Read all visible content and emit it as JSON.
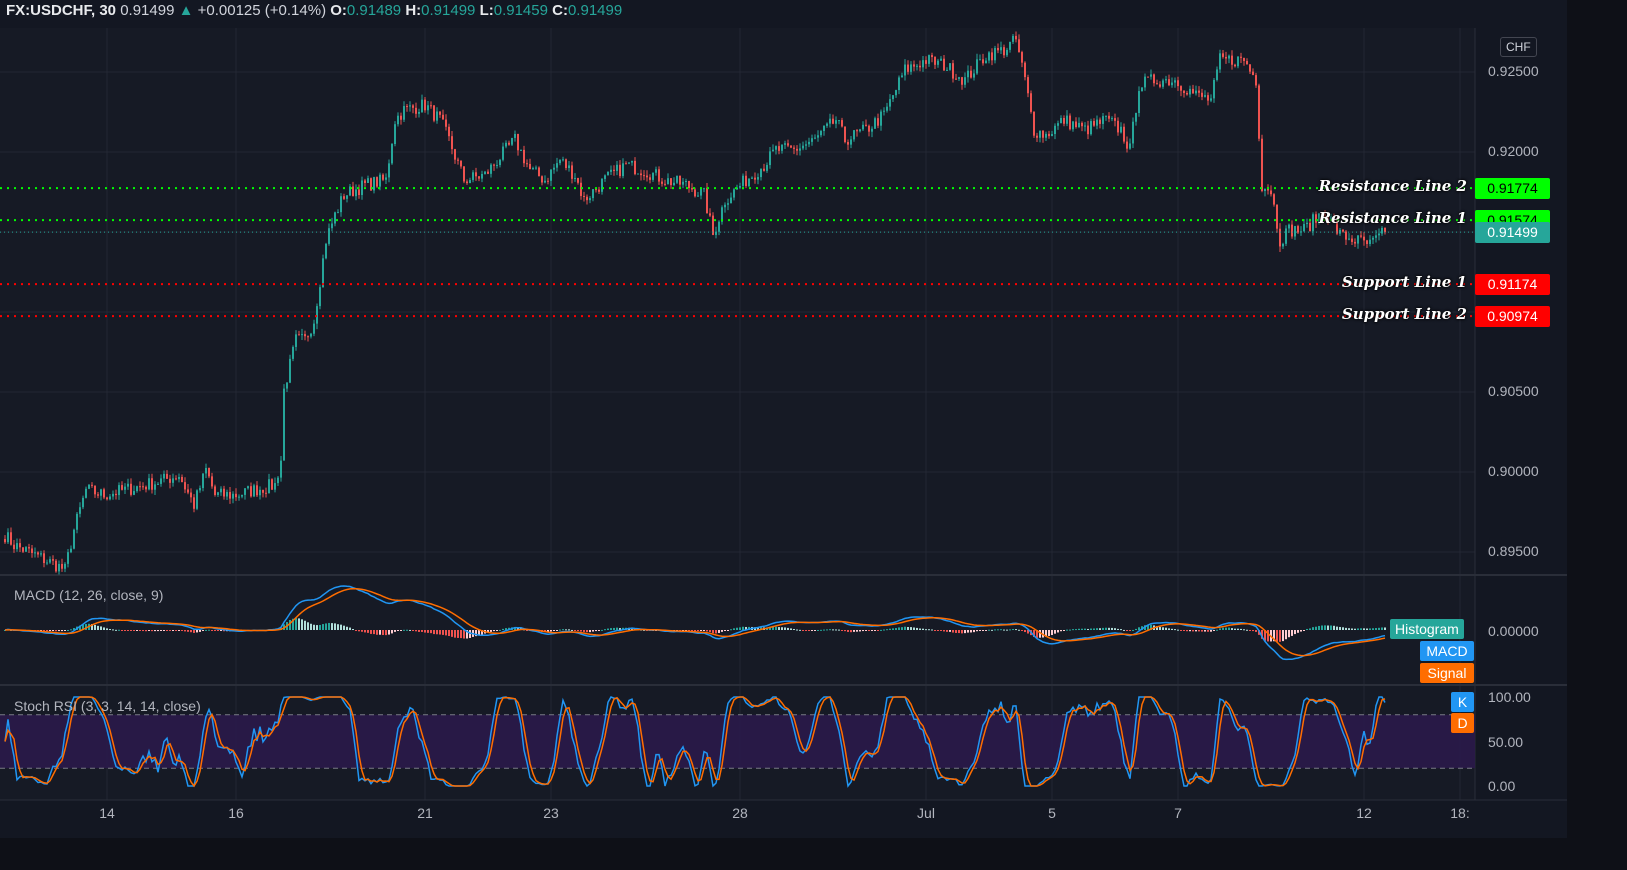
{
  "header": {
    "symbol": "FX:USDCHF, 30",
    "last": "0.91499",
    "change": "+0.00125 (+0.14%)",
    "o_label": "O:",
    "o": "0.91489",
    "h_label": "H:",
    "h": "0.91499",
    "l_label": "L:",
    "l": "0.91459",
    "c_label": "C:",
    "c": "0.91499",
    "currency": "CHF"
  },
  "levels": [
    {
      "name": "Resistance Line 2",
      "price": 0.91774,
      "label": "0.91774",
      "color": "#00ff00",
      "text_color": "#000000"
    },
    {
      "name": "Resistance Line 1",
      "price": 0.91574,
      "label": "0.91574",
      "color": "#00ff00",
      "text_color": "#000000"
    },
    {
      "name": "",
      "price": 0.91499,
      "label": "0.91499",
      "color": "#26a69a",
      "text_color": "#ffffff"
    },
    {
      "name": "Support Line 1",
      "price": 0.91174,
      "label": "0.91174",
      "color": "#ff0000",
      "text_color": "#ffffff"
    },
    {
      "name": "Support Line 2",
      "price": 0.90974,
      "label": "0.90974",
      "color": "#ff0000",
      "text_color": "#ffffff"
    }
  ],
  "indicators": {
    "macd_title": "MACD (12, 26, close, 9)",
    "macd_zero": "0.00000",
    "histogram": "Histogram",
    "macd": "MACD",
    "signal": "Signal",
    "stoch_title": "Stoch RSI (3, 3, 14, 14, close)",
    "k": "K",
    "d": "D",
    "stoch_ticks": [
      "100.00",
      "50.00",
      "0.00"
    ]
  },
  "colors": {
    "up": "#26a69a",
    "down": "#ef5350",
    "macd": "#2196f3",
    "signal": "#ff6d00",
    "stoch_band": "#2a1a4a"
  },
  "chart_data": {
    "type": "candlestick",
    "title": "FX:USDCHF, 30",
    "ylabel": "CHF",
    "ylim": [
      0.8937,
      0.9272
    ],
    "y_ticks": [
      "0.92500",
      "0.92000",
      "0.90500",
      "0.90000",
      "0.89500"
    ],
    "y_tick_values": [
      0.925,
      0.92,
      0.905,
      0.9,
      0.895
    ],
    "x_ticks": [
      {
        "label": "14",
        "bar": 34
      },
      {
        "label": "16",
        "bar": 77
      },
      {
        "label": "21",
        "bar": 140
      },
      {
        "label": "23",
        "bar": 182
      },
      {
        "label": "28",
        "bar": 245
      },
      {
        "label": "Jul",
        "bar": 307
      },
      {
        "label": "5",
        "bar": 349
      },
      {
        "label": "7",
        "bar": 391
      },
      {
        "label": "12",
        "bar": 453
      },
      {
        "label": "18:",
        "bar": 485
      }
    ],
    "close_path_bar_price": [
      [
        0,
        0.89606
      ],
      [
        3,
        0.89544
      ],
      [
        10,
        0.89481
      ],
      [
        17,
        0.89419
      ],
      [
        20,
        0.89388
      ],
      [
        23,
        0.89638
      ],
      [
        27,
        0.89888
      ],
      [
        33,
        0.89856
      ],
      [
        40,
        0.89888
      ],
      [
        47,
        0.89919
      ],
      [
        53,
        0.8995
      ],
      [
        58,
        0.89981
      ],
      [
        63,
        0.89794
      ],
      [
        67,
        0.90013
      ],
      [
        70,
        0.89856
      ],
      [
        77,
        0.89856
      ],
      [
        83,
        0.89888
      ],
      [
        90,
        0.89919
      ],
      [
        92,
        0.90075
      ],
      [
        93,
        0.90513
      ],
      [
        97,
        0.90825
      ],
      [
        100,
        0.90825
      ],
      [
        103,
        0.9095
      ],
      [
        107,
        0.9145
      ],
      [
        110,
        0.91606
      ],
      [
        113,
        0.91731
      ],
      [
        120,
        0.91794
      ],
      [
        127,
        0.91825
      ],
      [
        130,
        0.922
      ],
      [
        133,
        0.92263
      ],
      [
        140,
        0.92294
      ],
      [
        145,
        0.922
      ],
      [
        148,
        0.92075
      ],
      [
        153,
        0.91825
      ],
      [
        160,
        0.91856
      ],
      [
        167,
        0.92013
      ],
      [
        170,
        0.92075
      ],
      [
        175,
        0.91888
      ],
      [
        180,
        0.91825
      ],
      [
        185,
        0.9195
      ],
      [
        190,
        0.91856
      ],
      [
        193,
        0.917
      ],
      [
        200,
        0.91825
      ],
      [
        207,
        0.91919
      ],
      [
        213,
        0.91888
      ],
      [
        220,
        0.91825
      ],
      [
        227,
        0.91794
      ],
      [
        233,
        0.91731
      ],
      [
        236,
        0.91481
      ],
      [
        240,
        0.917
      ],
      [
        247,
        0.91825
      ],
      [
        253,
        0.91919
      ],
      [
        257,
        0.92013
      ],
      [
        263,
        0.92013
      ],
      [
        270,
        0.92075
      ],
      [
        277,
        0.922
      ],
      [
        280,
        0.92075
      ],
      [
        287,
        0.92138
      ],
      [
        293,
        0.92231
      ],
      [
        300,
        0.92513
      ],
      [
        307,
        0.92575
      ],
      [
        313,
        0.92544
      ],
      [
        320,
        0.9245
      ],
      [
        327,
        0.92606
      ],
      [
        333,
        0.92638
      ],
      [
        337,
        0.927
      ],
      [
        340,
        0.9245
      ],
      [
        343,
        0.92138
      ],
      [
        347,
        0.92106
      ],
      [
        353,
        0.922
      ],
      [
        360,
        0.92138
      ],
      [
        367,
        0.922
      ],
      [
        372,
        0.92138
      ],
      [
        375,
        0.92013
      ],
      [
        378,
        0.92419
      ],
      [
        383,
        0.9245
      ],
      [
        390,
        0.9245
      ],
      [
        397,
        0.92356
      ],
      [
        402,
        0.92325
      ],
      [
        405,
        0.92575
      ],
      [
        413,
        0.92575
      ],
      [
        417,
        0.9245
      ],
      [
        419,
        0.91794
      ],
      [
        422,
        0.91763
      ],
      [
        425,
        0.9145
      ],
      [
        428,
        0.91513
      ],
      [
        433,
        0.91513
      ],
      [
        440,
        0.91638
      ],
      [
        445,
        0.91481
      ],
      [
        450,
        0.9145
      ],
      [
        455,
        0.91419
      ],
      [
        460,
        0.91499
      ]
    ],
    "macd_params": [
      12,
      26,
      9
    ],
    "stoch_rsi_params": [
      3,
      3,
      14,
      14
    ],
    "stoch_ylim": [
      0,
      100
    ],
    "stoch_bands": [
      20,
      80
    ]
  }
}
